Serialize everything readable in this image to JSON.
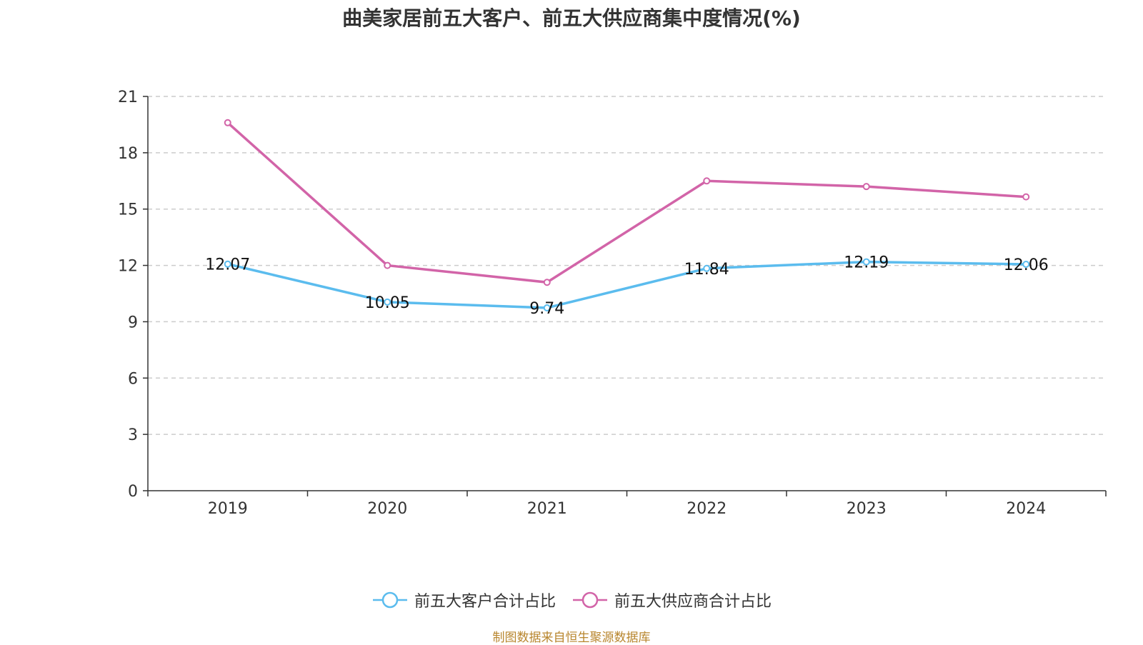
{
  "chart_data": {
    "type": "line",
    "title": "曲美家居前五大客户、前五大供应商集中度情况(%)",
    "xlabel": "",
    "ylabel": "",
    "categories": [
      "2019",
      "2020",
      "2021",
      "2022",
      "2023",
      "2024"
    ],
    "ylim": [
      0,
      21
    ],
    "yticks": [
      0,
      3,
      6,
      9,
      12,
      15,
      18,
      21
    ],
    "grid": true,
    "legend_position": "bottom",
    "series": [
      {
        "name": "前五大客户合计占比",
        "color": "#5bbcee",
        "values": [
          12.07,
          10.05,
          9.74,
          11.84,
          12.19,
          12.06
        ],
        "value_labels": [
          "12.07",
          "10.05",
          "9.74",
          "11.84",
          "12.19",
          "12.06"
        ],
        "show_labels": true
      },
      {
        "name": "前五大供应商合计占比",
        "color": "#d264a8",
        "values": [
          19.6,
          12.0,
          11.1,
          16.5,
          16.2,
          15.65
        ],
        "show_labels": false
      }
    ]
  },
  "footer": {
    "source": "制图数据来自恒生聚源数据库"
  }
}
